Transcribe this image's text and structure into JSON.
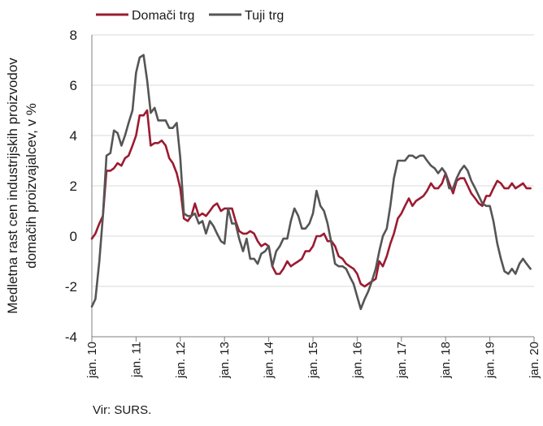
{
  "chart_data": {
    "type": "line",
    "ylabel_lines": [
      "Medletna rast cen industrijskih proizvodov",
      "domačih proizvajalcev, v %"
    ],
    "source": "Vir: SURS.",
    "ylim": [
      -4,
      8
    ],
    "yticks": [
      -4,
      -2,
      0,
      2,
      4,
      6,
      8
    ],
    "xlim": [
      2010.0,
      2020.0
    ],
    "xticks": [
      "jan. 10",
      "jan. 11",
      "jan. 12",
      "jan. 13",
      "jan. 14",
      "jan. 15",
      "jan. 16",
      "jan. 17",
      "jan. 18",
      "jan. 19",
      "jan. 20"
    ],
    "grid": "horizontal",
    "legend_position": "top-left",
    "series": [
      {
        "name": "Domači trg",
        "color": "#9b1b30",
        "points": [
          [
            2010.0,
            -0.1
          ],
          [
            2010.08,
            0.1
          ],
          [
            2010.17,
            0.5
          ],
          [
            2010.25,
            0.8
          ],
          [
            2010.33,
            2.6
          ],
          [
            2010.42,
            2.6
          ],
          [
            2010.5,
            2.7
          ],
          [
            2010.58,
            2.9
          ],
          [
            2010.67,
            2.8
          ],
          [
            2010.75,
            3.1
          ],
          [
            2010.83,
            3.2
          ],
          [
            2010.92,
            3.6
          ],
          [
            2011.0,
            4.0
          ],
          [
            2011.08,
            4.8
          ],
          [
            2011.17,
            4.8
          ],
          [
            2011.25,
            5.0
          ],
          [
            2011.33,
            3.6
          ],
          [
            2011.42,
            3.7
          ],
          [
            2011.5,
            3.7
          ],
          [
            2011.58,
            3.8
          ],
          [
            2011.67,
            3.6
          ],
          [
            2011.75,
            3.1
          ],
          [
            2011.83,
            2.9
          ],
          [
            2011.92,
            2.5
          ],
          [
            2012.0,
            1.9
          ],
          [
            2012.08,
            0.7
          ],
          [
            2012.17,
            0.6
          ],
          [
            2012.25,
            0.8
          ],
          [
            2012.33,
            1.3
          ],
          [
            2012.42,
            0.8
          ],
          [
            2012.5,
            0.9
          ],
          [
            2012.58,
            0.8
          ],
          [
            2012.67,
            1.0
          ],
          [
            2012.75,
            1.2
          ],
          [
            2012.83,
            1.3
          ],
          [
            2012.92,
            1.0
          ],
          [
            2013.0,
            1.1
          ],
          [
            2013.08,
            1.1
          ],
          [
            2013.17,
            1.1
          ],
          [
            2013.25,
            0.6
          ],
          [
            2013.33,
            0.2
          ],
          [
            2013.42,
            0.1
          ],
          [
            2013.5,
            0.1
          ],
          [
            2013.58,
            0.2
          ],
          [
            2013.67,
            0.1
          ],
          [
            2013.75,
            -0.2
          ],
          [
            2013.83,
            -0.4
          ],
          [
            2013.92,
            -0.3
          ],
          [
            2014.0,
            -0.4
          ],
          [
            2014.08,
            -1.2
          ],
          [
            2014.17,
            -1.5
          ],
          [
            2014.25,
            -1.5
          ],
          [
            2014.33,
            -1.3
          ],
          [
            2014.42,
            -1.0
          ],
          [
            2014.5,
            -1.2
          ],
          [
            2014.58,
            -1.1
          ],
          [
            2014.67,
            -1.0
          ],
          [
            2014.75,
            -0.9
          ],
          [
            2014.83,
            -0.6
          ],
          [
            2014.92,
            -0.6
          ],
          [
            2015.0,
            -0.4
          ],
          [
            2015.08,
            0.0
          ],
          [
            2015.17,
            0.0
          ],
          [
            2015.25,
            0.1
          ],
          [
            2015.33,
            -0.2
          ],
          [
            2015.42,
            -0.2
          ],
          [
            2015.5,
            -0.4
          ],
          [
            2015.58,
            -0.8
          ],
          [
            2015.67,
            -0.9
          ],
          [
            2015.75,
            -1.1
          ],
          [
            2015.83,
            -1.2
          ],
          [
            2015.92,
            -1.3
          ],
          [
            2016.0,
            -1.5
          ],
          [
            2016.08,
            -1.9
          ],
          [
            2016.17,
            -2.0
          ],
          [
            2016.25,
            -1.9
          ],
          [
            2016.33,
            -1.8
          ],
          [
            2016.42,
            -1.7
          ],
          [
            2016.5,
            -1.0
          ],
          [
            2016.58,
            -1.2
          ],
          [
            2016.67,
            -0.8
          ],
          [
            2016.75,
            -0.3
          ],
          [
            2016.83,
            0.1
          ],
          [
            2016.92,
            0.7
          ],
          [
            2017.0,
            0.9
          ],
          [
            2017.08,
            1.2
          ],
          [
            2017.17,
            1.5
          ],
          [
            2017.25,
            1.2
          ],
          [
            2017.33,
            1.4
          ],
          [
            2017.42,
            1.5
          ],
          [
            2017.5,
            1.6
          ],
          [
            2017.58,
            1.8
          ],
          [
            2017.67,
            2.1
          ],
          [
            2017.75,
            1.9
          ],
          [
            2017.83,
            1.9
          ],
          [
            2017.92,
            2.1
          ],
          [
            2018.0,
            2.5
          ],
          [
            2018.08,
            2.1
          ],
          [
            2018.17,
            1.7
          ],
          [
            2018.25,
            2.2
          ],
          [
            2018.33,
            2.3
          ],
          [
            2018.42,
            2.3
          ],
          [
            2018.5,
            2.0
          ],
          [
            2018.58,
            1.7
          ],
          [
            2018.67,
            1.5
          ],
          [
            2018.75,
            1.3
          ],
          [
            2018.83,
            1.2
          ],
          [
            2018.92,
            1.6
          ],
          [
            2019.0,
            1.6
          ],
          [
            2019.08,
            1.9
          ],
          [
            2019.17,
            2.2
          ],
          [
            2019.25,
            2.1
          ],
          [
            2019.33,
            1.9
          ],
          [
            2019.42,
            1.9
          ],
          [
            2019.5,
            2.1
          ],
          [
            2019.58,
            1.9
          ],
          [
            2019.67,
            2.0
          ],
          [
            2019.75,
            2.1
          ],
          [
            2019.83,
            1.9
          ],
          [
            2019.92,
            1.9
          ]
        ]
      },
      {
        "name": "Tuji trg",
        "color": "#555555",
        "points": [
          [
            2010.0,
            -2.8
          ],
          [
            2010.08,
            -2.5
          ],
          [
            2010.17,
            -1.0
          ],
          [
            2010.25,
            0.8
          ],
          [
            2010.33,
            3.2
          ],
          [
            2010.42,
            3.3
          ],
          [
            2010.5,
            4.2
          ],
          [
            2010.58,
            4.1
          ],
          [
            2010.67,
            3.6
          ],
          [
            2010.75,
            4.0
          ],
          [
            2010.83,
            4.5
          ],
          [
            2010.92,
            5.0
          ],
          [
            2011.0,
            6.5
          ],
          [
            2011.08,
            7.1
          ],
          [
            2011.17,
            7.2
          ],
          [
            2011.25,
            6.2
          ],
          [
            2011.33,
            4.9
          ],
          [
            2011.42,
            5.1
          ],
          [
            2011.5,
            4.6
          ],
          [
            2011.58,
            4.6
          ],
          [
            2011.67,
            4.6
          ],
          [
            2011.75,
            4.3
          ],
          [
            2011.83,
            4.3
          ],
          [
            2011.92,
            4.5
          ],
          [
            2012.0,
            3.1
          ],
          [
            2012.08,
            0.9
          ],
          [
            2012.17,
            0.8
          ],
          [
            2012.25,
            0.8
          ],
          [
            2012.33,
            0.9
          ],
          [
            2012.42,
            0.5
          ],
          [
            2012.5,
            0.6
          ],
          [
            2012.58,
            0.1
          ],
          [
            2012.67,
            0.6
          ],
          [
            2012.75,
            0.4
          ],
          [
            2012.83,
            0.1
          ],
          [
            2012.92,
            -0.2
          ],
          [
            2013.0,
            -0.3
          ],
          [
            2013.08,
            1.1
          ],
          [
            2013.17,
            0.5
          ],
          [
            2013.25,
            0.5
          ],
          [
            2013.33,
            -0.1
          ],
          [
            2013.42,
            -0.6
          ],
          [
            2013.5,
            -0.1
          ],
          [
            2013.58,
            -0.9
          ],
          [
            2013.67,
            -0.9
          ],
          [
            2013.75,
            -1.1
          ],
          [
            2013.83,
            -0.7
          ],
          [
            2013.92,
            -0.6
          ],
          [
            2014.0,
            -0.4
          ],
          [
            2014.08,
            -1.2
          ],
          [
            2014.17,
            -0.6
          ],
          [
            2014.25,
            -0.4
          ],
          [
            2014.33,
            -0.1
          ],
          [
            2014.42,
            -0.1
          ],
          [
            2014.5,
            0.6
          ],
          [
            2014.58,
            1.1
          ],
          [
            2014.67,
            0.8
          ],
          [
            2014.75,
            0.3
          ],
          [
            2014.83,
            0.3
          ],
          [
            2014.92,
            0.5
          ],
          [
            2015.0,
            0.9
          ],
          [
            2015.08,
            1.8
          ],
          [
            2015.17,
            1.2
          ],
          [
            2015.25,
            1.0
          ],
          [
            2015.33,
            0.5
          ],
          [
            2015.42,
            -0.3
          ],
          [
            2015.5,
            -1.1
          ],
          [
            2015.58,
            -1.2
          ],
          [
            2015.67,
            -1.2
          ],
          [
            2015.75,
            -1.3
          ],
          [
            2015.83,
            -1.6
          ],
          [
            2015.92,
            -1.9
          ],
          [
            2016.0,
            -2.4
          ],
          [
            2016.08,
            -2.9
          ],
          [
            2016.17,
            -2.5
          ],
          [
            2016.25,
            -2.2
          ],
          [
            2016.33,
            -1.8
          ],
          [
            2016.42,
            -1.3
          ],
          [
            2016.5,
            -0.6
          ],
          [
            2016.58,
            0.0
          ],
          [
            2016.67,
            0.3
          ],
          [
            2016.75,
            1.2
          ],
          [
            2016.83,
            2.3
          ],
          [
            2016.92,
            3.0
          ],
          [
            2017.0,
            3.0
          ],
          [
            2017.08,
            3.0
          ],
          [
            2017.17,
            3.2
          ],
          [
            2017.25,
            3.2
          ],
          [
            2017.33,
            3.1
          ],
          [
            2017.42,
            3.2
          ],
          [
            2017.5,
            3.2
          ],
          [
            2017.58,
            3.0
          ],
          [
            2017.67,
            2.8
          ],
          [
            2017.75,
            2.7
          ],
          [
            2017.83,
            2.5
          ],
          [
            2017.92,
            2.7
          ],
          [
            2018.0,
            2.5
          ],
          [
            2018.08,
            1.9
          ],
          [
            2018.17,
            1.9
          ],
          [
            2018.25,
            2.3
          ],
          [
            2018.33,
            2.6
          ],
          [
            2018.42,
            2.8
          ],
          [
            2018.5,
            2.6
          ],
          [
            2018.58,
            2.2
          ],
          [
            2018.67,
            1.9
          ],
          [
            2018.75,
            1.6
          ],
          [
            2018.83,
            1.3
          ],
          [
            2018.92,
            1.2
          ],
          [
            2019.0,
            1.2
          ],
          [
            2019.08,
            0.6
          ],
          [
            2019.17,
            -0.3
          ],
          [
            2019.25,
            -0.9
          ],
          [
            2019.33,
            -1.4
          ],
          [
            2019.42,
            -1.5
          ],
          [
            2019.5,
            -1.3
          ],
          [
            2019.58,
            -1.5
          ],
          [
            2019.67,
            -1.1
          ],
          [
            2019.75,
            -0.9
          ],
          [
            2019.83,
            -1.1
          ],
          [
            2019.92,
            -1.3
          ]
        ]
      }
    ]
  }
}
